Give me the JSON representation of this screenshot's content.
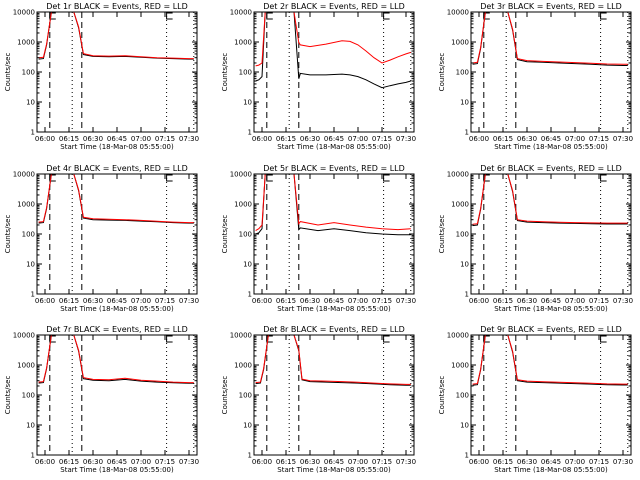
{
  "figure": {
    "xlabel": "Start Time (18-Mar-08 05:55:00)",
    "ylabel": "Counts/sec",
    "x_ticks": [
      "06:00",
      "06:15",
      "06:30",
      "06:45",
      "07:00",
      "07:15",
      "07:30"
    ],
    "y_ticks": [
      "1",
      "10",
      "100",
      "1000",
      "10000"
    ],
    "ylim": [
      1,
      10000
    ],
    "y_scale": "log",
    "colors": {
      "events": "#000000",
      "lld": "#ff0000"
    }
  },
  "chart_data": [
    {
      "type": "line",
      "title": "Det 1r BLACK = Events, RED = LLD",
      "markers": {
        "dash": [
          "06:03",
          "06:23"
        ],
        "dot": [
          "06:17",
          "07:16",
          "07:33"
        ]
      },
      "series": [
        {
          "color": "#000000",
          "x": [
            "05:56",
            "05:59",
            "06:01",
            "06:04",
            "06:08",
            "06:14",
            "06:18",
            "06:21",
            "06:24",
            "06:30",
            "06:40",
            "06:50",
            "07:00",
            "07:10",
            "07:20",
            "07:30",
            "07:33"
          ],
          "y": [
            270,
            280,
            800,
            10000,
            10000,
            10000,
            10000,
            3000,
            380,
            330,
            320,
            330,
            310,
            290,
            280,
            270,
            270
          ]
        },
        {
          "color": "#ff0000",
          "x": [
            "05:56",
            "05:59",
            "06:01",
            "06:04",
            "06:08",
            "06:14",
            "06:18",
            "06:21",
            "06:24",
            "06:30",
            "06:40",
            "06:50",
            "07:00",
            "07:10",
            "07:20",
            "07:30",
            "07:33"
          ],
          "y": [
            300,
            310,
            850,
            10000,
            10000,
            10000,
            10000,
            3200,
            410,
            350,
            340,
            350,
            320,
            300,
            290,
            280,
            280
          ]
        }
      ]
    },
    {
      "type": "line",
      "title": "Det 2r BLACK = Events, RED = LLD",
      "markers": {
        "dash": [
          "06:03",
          "06:23"
        ],
        "dot": [
          "06:17",
          "07:16",
          "07:33"
        ]
      },
      "series": [
        {
          "color": "#000000",
          "x": [
            "05:56",
            "05:58",
            "06:00",
            "06:02",
            "06:03",
            "06:10",
            "06:20",
            "06:23",
            "06:24",
            "06:30",
            "06:40",
            "06:50",
            "06:55",
            "07:00",
            "07:05",
            "07:10",
            "07:15",
            "07:20",
            "07:25",
            "07:30",
            "07:33"
          ],
          "y": [
            50,
            55,
            70,
            10000,
            10000,
            10000,
            10000,
            60,
            90,
            80,
            80,
            85,
            80,
            70,
            55,
            40,
            30,
            35,
            40,
            45,
            50
          ]
        },
        {
          "color": "#ff0000",
          "x": [
            "05:56",
            "05:58",
            "06:00",
            "06:02",
            "06:03",
            "06:10",
            "06:20",
            "06:23",
            "06:24",
            "06:30",
            "06:40",
            "06:50",
            "06:55",
            "07:00",
            "07:05",
            "07:10",
            "07:15",
            "07:20",
            "07:25",
            "07:30",
            "07:33"
          ],
          "y": [
            160,
            170,
            200,
            10000,
            10000,
            10000,
            10000,
            950,
            800,
            700,
            850,
            1100,
            1050,
            800,
            500,
            300,
            200,
            250,
            320,
            400,
            450
          ]
        }
      ]
    },
    {
      "type": "line",
      "title": "Det 3r BLACK = Events, RED = LLD",
      "markers": {
        "dash": [
          "06:03",
          "06:23"
        ],
        "dot": [
          "06:17",
          "07:16",
          "07:33"
        ]
      },
      "series": [
        {
          "color": "#000000",
          "x": [
            "05:56",
            "05:59",
            "06:01",
            "06:04",
            "06:08",
            "06:14",
            "06:18",
            "06:21",
            "06:24",
            "06:30",
            "06:40",
            "06:50",
            "07:00",
            "07:10",
            "07:20",
            "07:30",
            "07:33"
          ],
          "y": [
            180,
            190,
            600,
            10000,
            10000,
            10000,
            10000,
            2500,
            260,
            220,
            210,
            200,
            190,
            180,
            170,
            165,
            165
          ]
        },
        {
          "color": "#ff0000",
          "x": [
            "05:56",
            "05:59",
            "06:01",
            "06:04",
            "06:08",
            "06:14",
            "06:18",
            "06:21",
            "06:24",
            "06:30",
            "06:40",
            "06:50",
            "07:00",
            "07:10",
            "07:20",
            "07:30",
            "07:33"
          ],
          "y": [
            200,
            210,
            650,
            10000,
            10000,
            10000,
            10000,
            2700,
            280,
            240,
            225,
            215,
            205,
            195,
            185,
            180,
            180
          ]
        }
      ]
    },
    {
      "type": "line",
      "title": "Det 4r BLACK = Events, RED = LLD",
      "markers": {
        "dash": [
          "06:03",
          "06:23"
        ],
        "dot": [
          "06:17",
          "07:16",
          "07:33"
        ]
      },
      "series": [
        {
          "color": "#000000",
          "x": [
            "05:56",
            "05:59",
            "06:01",
            "06:04",
            "06:08",
            "06:14",
            "06:18",
            "06:21",
            "06:24",
            "06:30",
            "06:40",
            "06:50",
            "07:00",
            "07:10",
            "07:20",
            "07:30",
            "07:33"
          ],
          "y": [
            230,
            240,
            700,
            10000,
            10000,
            10000,
            10000,
            2800,
            340,
            300,
            290,
            285,
            270,
            255,
            240,
            230,
            230
          ]
        },
        {
          "color": "#ff0000",
          "x": [
            "05:56",
            "05:59",
            "06:01",
            "06:04",
            "06:08",
            "06:14",
            "06:18",
            "06:21",
            "06:24",
            "06:30",
            "06:40",
            "06:50",
            "07:00",
            "07:10",
            "07:20",
            "07:30",
            "07:33"
          ],
          "y": [
            250,
            260,
            750,
            10000,
            10000,
            10000,
            10000,
            3000,
            360,
            320,
            310,
            300,
            285,
            265,
            250,
            240,
            240
          ]
        }
      ]
    },
    {
      "type": "line",
      "title": "Det 5r BLACK = Events, RED = LLD",
      "markers": {
        "dash": [
          "06:03",
          "06:23"
        ],
        "dot": [
          "06:17",
          "07:16",
          "07:33"
        ]
      },
      "series": [
        {
          "color": "#000000",
          "x": [
            "05:56",
            "05:58",
            "06:00",
            "06:02",
            "06:03",
            "06:10",
            "06:20",
            "06:23",
            "06:24",
            "06:35",
            "06:45",
            "06:55",
            "07:05",
            "07:15",
            "07:25",
            "07:33"
          ],
          "y": [
            100,
            110,
            150,
            10000,
            10000,
            10000,
            10000,
            140,
            160,
            130,
            150,
            130,
            110,
            100,
            95,
            95
          ]
        },
        {
          "color": "#ff0000",
          "x": [
            "05:56",
            "05:58",
            "06:00",
            "06:02",
            "06:03",
            "06:10",
            "06:20",
            "06:23",
            "06:24",
            "06:35",
            "06:45",
            "06:55",
            "07:05",
            "07:15",
            "07:25",
            "07:33"
          ],
          "y": [
            130,
            150,
            200,
            10000,
            10000,
            10000,
            10000,
            220,
            260,
            200,
            240,
            200,
            170,
            150,
            140,
            150
          ]
        }
      ]
    },
    {
      "type": "line",
      "title": "Det 6r BLACK = Events, RED = LLD",
      "markers": {
        "dash": [
          "06:03",
          "06:23"
        ],
        "dot": [
          "06:17",
          "07:16",
          "07:33"
        ]
      },
      "series": [
        {
          "color": "#000000",
          "x": [
            "05:56",
            "05:59",
            "06:01",
            "06:04",
            "06:08",
            "06:14",
            "06:18",
            "06:21",
            "06:24",
            "06:30",
            "06:40",
            "06:50",
            "07:00",
            "07:10",
            "07:20",
            "07:30",
            "07:33"
          ],
          "y": [
            190,
            200,
            650,
            10000,
            10000,
            10000,
            10000,
            2600,
            280,
            250,
            240,
            230,
            225,
            220,
            215,
            215,
            215
          ]
        },
        {
          "color": "#ff0000",
          "x": [
            "05:56",
            "05:59",
            "06:01",
            "06:04",
            "06:08",
            "06:14",
            "06:18",
            "06:21",
            "06:24",
            "06:30",
            "06:40",
            "06:50",
            "07:00",
            "07:10",
            "07:20",
            "07:30",
            "07:33"
          ],
          "y": [
            210,
            220,
            700,
            10000,
            10000,
            10000,
            10000,
            2800,
            300,
            270,
            255,
            245,
            240,
            235,
            230,
            230,
            230
          ]
        }
      ]
    },
    {
      "type": "line",
      "title": "Det 7r BLACK = Events, RED = LLD",
      "markers": {
        "dash": [
          "06:03",
          "06:23"
        ],
        "dot": [
          "06:17",
          "07:16",
          "07:33"
        ]
      },
      "series": [
        {
          "color": "#000000",
          "x": [
            "05:56",
            "05:59",
            "06:01",
            "06:04",
            "06:08",
            "06:14",
            "06:18",
            "06:21",
            "06:24",
            "06:30",
            "06:40",
            "06:50",
            "07:00",
            "07:10",
            "07:20",
            "07:30",
            "07:33"
          ],
          "y": [
            250,
            260,
            750,
            10000,
            10000,
            10000,
            10000,
            2900,
            350,
            310,
            300,
            330,
            290,
            270,
            255,
            245,
            245
          ]
        },
        {
          "color": "#ff0000",
          "x": [
            "05:56",
            "05:59",
            "06:01",
            "06:04",
            "06:08",
            "06:14",
            "06:18",
            "06:21",
            "06:24",
            "06:30",
            "06:40",
            "06:50",
            "07:00",
            "07:10",
            "07:20",
            "07:30",
            "07:33"
          ],
          "y": [
            270,
            280,
            800,
            10000,
            10000,
            10000,
            10000,
            3100,
            380,
            330,
            320,
            360,
            310,
            290,
            270,
            260,
            260
          ]
        }
      ]
    },
    {
      "type": "line",
      "title": "Det 8r BLACK = Events, RED = LLD",
      "markers": {
        "dash": [
          "06:03",
          "06:23"
        ],
        "dot": [
          "06:17",
          "07:16",
          "07:33"
        ]
      },
      "series": [
        {
          "color": "#000000",
          "x": [
            "05:56",
            "05:59",
            "06:01",
            "06:04",
            "06:08",
            "06:16",
            "06:20",
            "06:23",
            "06:25",
            "06:30",
            "06:40",
            "06:50",
            "07:00",
            "07:10",
            "07:20",
            "07:30",
            "07:33"
          ],
          "y": [
            240,
            250,
            700,
            10000,
            10000,
            10000,
            10000,
            3000,
            320,
            280,
            270,
            260,
            250,
            235,
            220,
            210,
            210
          ]
        },
        {
          "color": "#ff0000",
          "x": [
            "05:56",
            "05:59",
            "06:01",
            "06:04",
            "06:08",
            "06:16",
            "06:20",
            "06:23",
            "06:25",
            "06:30",
            "06:40",
            "06:50",
            "07:00",
            "07:10",
            "07:20",
            "07:30",
            "07:33"
          ],
          "y": [
            260,
            270,
            760,
            10000,
            10000,
            10000,
            10000,
            3200,
            340,
            300,
            290,
            280,
            265,
            250,
            235,
            225,
            225
          ]
        }
      ]
    },
    {
      "type": "line",
      "title": "Det 9r BLACK = Events, RED = LLD",
      "markers": {
        "dash": [
          "06:03",
          "06:23"
        ],
        "dot": [
          "06:17",
          "07:16",
          "07:33"
        ]
      },
      "series": [
        {
          "color": "#000000",
          "x": [
            "05:56",
            "05:59",
            "06:01",
            "06:04",
            "06:08",
            "06:14",
            "06:18",
            "06:21",
            "06:24",
            "06:30",
            "06:40",
            "06:50",
            "07:00",
            "07:10",
            "07:20",
            "07:30",
            "07:33"
          ],
          "y": [
            210,
            220,
            680,
            10000,
            10000,
            10000,
            10000,
            2700,
            300,
            270,
            260,
            250,
            240,
            230,
            220,
            215,
            215
          ]
        },
        {
          "color": "#ff0000",
          "x": [
            "05:56",
            "05:59",
            "06:01",
            "06:04",
            "06:08",
            "06:14",
            "06:18",
            "06:21",
            "06:24",
            "06:30",
            "06:40",
            "06:50",
            "07:00",
            "07:10",
            "07:20",
            "07:30",
            "07:33"
          ],
          "y": [
            230,
            240,
            720,
            10000,
            10000,
            10000,
            10000,
            2900,
            320,
            290,
            275,
            265,
            255,
            245,
            235,
            230,
            230
          ]
        }
      ]
    }
  ]
}
